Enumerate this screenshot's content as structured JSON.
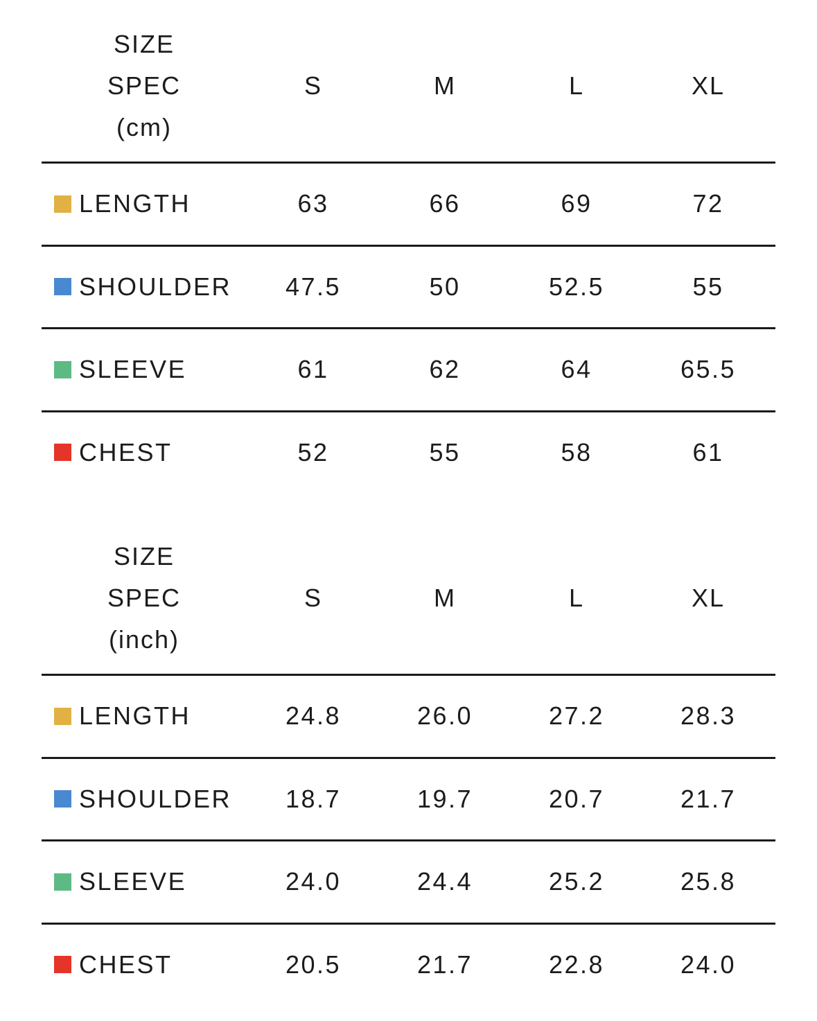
{
  "tables": [
    {
      "spec_label": [
        "SIZE",
        "SPEC",
        "(cm)"
      ],
      "sizes": [
        "S",
        "M",
        "L",
        "XL"
      ],
      "rows": [
        {
          "label": "LENGTH",
          "color": "#E2B144",
          "values": [
            "63",
            "66",
            "69",
            "72"
          ]
        },
        {
          "label": "SHOULDER",
          "color": "#4A89CF",
          "values": [
            "47.5",
            "50",
            "52.5",
            "55"
          ]
        },
        {
          "label": "SLEEVE",
          "color": "#5DBA84",
          "values": [
            "61",
            "62",
            "64",
            "65.5"
          ]
        },
        {
          "label": "CHEST",
          "color": "#E43528",
          "values": [
            "52",
            "55",
            "58",
            "61"
          ]
        }
      ]
    },
    {
      "spec_label": [
        "SIZE",
        "SPEC",
        "(inch)"
      ],
      "sizes": [
        "S",
        "M",
        "L",
        "XL"
      ],
      "rows": [
        {
          "label": "LENGTH",
          "color": "#E2B144",
          "values": [
            "24.8",
            "26.0",
            "27.2",
            "28.3"
          ]
        },
        {
          "label": "SHOULDER",
          "color": "#4A89CF",
          "values": [
            "18.7",
            "19.7",
            "20.7",
            "21.7"
          ]
        },
        {
          "label": "SLEEVE",
          "color": "#5DBA84",
          "values": [
            "24.0",
            "24.4",
            "25.2",
            "25.8"
          ]
        },
        {
          "label": "CHEST",
          "color": "#E43528",
          "values": [
            "20.5",
            "21.7",
            "22.8",
            "24.0"
          ]
        }
      ]
    }
  ]
}
